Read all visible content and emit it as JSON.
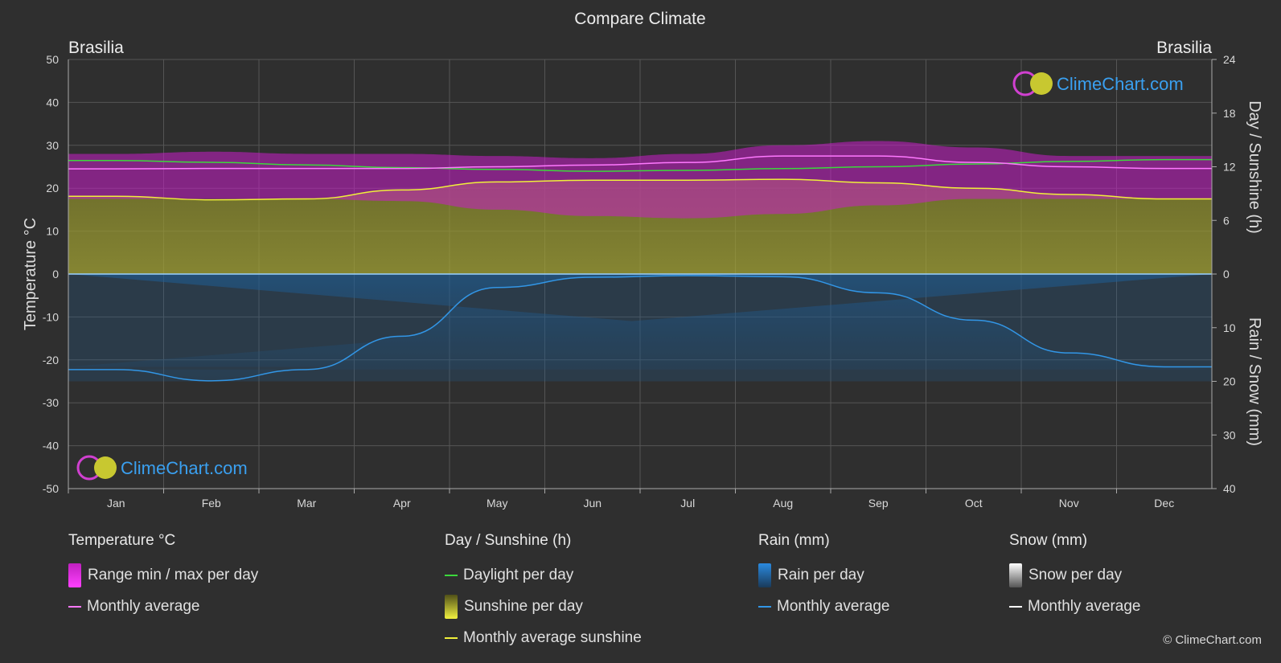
{
  "title": "Compare Climate",
  "copyright": "© ClimeChart.com",
  "logo_text": "ClimeChart.com",
  "chart_data": {
    "type": "area",
    "location_left": "Brasilia",
    "location_right": "Brasilia",
    "months": [
      "Jan",
      "Feb",
      "Mar",
      "Apr",
      "May",
      "Jun",
      "Jul",
      "Aug",
      "Sep",
      "Oct",
      "Nov",
      "Dec"
    ],
    "y_left": {
      "label": "Temperature °C",
      "range": [
        -50,
        50
      ],
      "ticks": [
        50,
        40,
        30,
        20,
        10,
        0,
        -10,
        -20,
        -30,
        -40,
        -50
      ]
    },
    "y_right_top": {
      "label": "Day / Sunshine (h)",
      "range": [
        0,
        24
      ],
      "ticks": [
        24,
        18,
        12,
        6,
        0
      ]
    },
    "y_right_bottom": {
      "label": "Rain / Snow (mm)",
      "range": [
        0,
        40
      ],
      "ticks": [
        10,
        20,
        30,
        40
      ]
    },
    "grid": true,
    "series": [
      {
        "name": "Range min / max per day",
        "unit": "°C",
        "min": [
          17.5,
          17.5,
          17.5,
          17,
          15,
          13.5,
          13,
          14,
          16,
          17.5,
          17.5,
          17.5
        ],
        "max": [
          28,
          28.5,
          28,
          28,
          27.5,
          27,
          28,
          30,
          31,
          29.5,
          27.5,
          27.5
        ]
      },
      {
        "name": "Monthly average",
        "unit": "°C",
        "values": [
          24.5,
          24.6,
          24.6,
          24.6,
          25,
          25.4,
          26,
          27.5,
          27.5,
          26,
          25,
          24.6
        ]
      },
      {
        "name": "Daylight per day",
        "unit": "h",
        "values": [
          12.7,
          12.5,
          12.2,
          11.9,
          11.7,
          11.5,
          11.6,
          11.8,
          12,
          12.3,
          12.6,
          12.8
        ]
      },
      {
        "name": "Monthly average sunshine",
        "unit": "h",
        "values": [
          8.7,
          8.3,
          8.4,
          9.4,
          10.3,
          10.5,
          10.5,
          10.6,
          10.2,
          9.6,
          8.9,
          8.4
        ]
      },
      {
        "name": "Rain monthly average",
        "unit": "mm",
        "values": [
          17.8,
          19.9,
          17.8,
          11.6,
          2.5,
          0.6,
          0.3,
          0.5,
          3.5,
          8.6,
          14.7,
          17.3
        ]
      },
      {
        "name": "Snow monthly average",
        "unit": "mm",
        "values": [
          0,
          0,
          0,
          0,
          0,
          0,
          0,
          0,
          0,
          0,
          0,
          0
        ]
      }
    ]
  },
  "legend": {
    "temperature": {
      "title": "Temperature °C",
      "items": [
        "Range min / max per day",
        "Monthly average"
      ]
    },
    "sunshine": {
      "title": "Day / Sunshine (h)",
      "items": [
        "Daylight per day",
        "Sunshine per day",
        "Monthly average sunshine"
      ]
    },
    "rain": {
      "title": "Rain (mm)",
      "items": [
        "Rain per day",
        "Monthly average"
      ]
    },
    "snow": {
      "title": "Snow (mm)",
      "items": [
        "Snow per day",
        "Monthly average"
      ]
    }
  },
  "colors": {
    "background": "#2f2f2f",
    "temp_range": "#c81ec8",
    "temp_avg": "#ff78ff",
    "daylight": "#3cd83c",
    "sunshine_fill": "#9a9a2a",
    "sunshine_avg": "#f0f03a",
    "rain_fill": "#1e64a0",
    "rain_avg": "#3296e6",
    "snow_avg": "#ffffff"
  }
}
